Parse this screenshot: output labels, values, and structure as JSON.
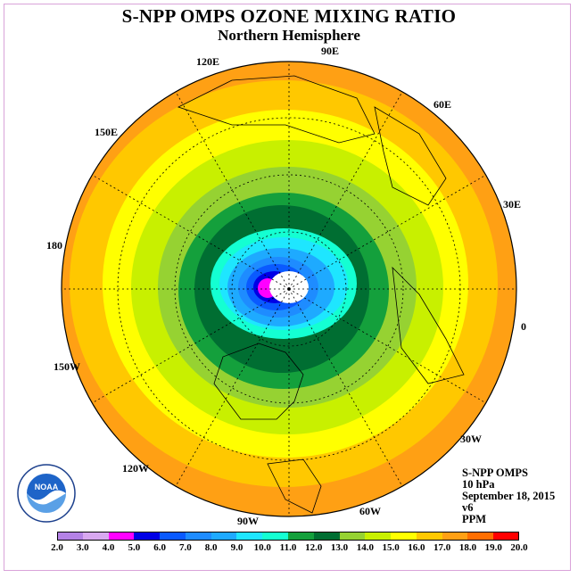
{
  "title": "S-NPP OMPS OZONE MIXING RATIO",
  "subtitle": "Northern Hemisphere",
  "longitude_labels": {
    "lon_90e": "90E",
    "lon_60e": "60E",
    "lon_30e": "30E",
    "lon_0": "0",
    "lon_30w": "30W",
    "lon_60w": "60W",
    "lon_90w": "90W",
    "lon_120w": "120W",
    "lon_150w": "150W",
    "lon_180": "180",
    "lon_150e": "150E",
    "lon_120e": "120E"
  },
  "info": {
    "instrument": "S-NPP OMPS",
    "level": "10 hPa",
    "date": "September 18, 2015",
    "version": "v6",
    "units": "PPM"
  },
  "colorbar": {
    "ticks": [
      "2.0",
      "3.0",
      "4.0",
      "5.0",
      "6.0",
      "7.0",
      "8.0",
      "9.0",
      "10.0",
      "11.0",
      "12.0",
      "13.0",
      "14.0",
      "15.0",
      "16.0",
      "17.0",
      "18.0",
      "19.0",
      "20.0"
    ],
    "colors": [
      "#b482e6",
      "#d8a8f0",
      "#ff00ff",
      "#0000e6",
      "#0a5aff",
      "#1e8cff",
      "#1eaaff",
      "#1ee6ff",
      "#14ffd2",
      "#14a03c",
      "#006e32",
      "#96d232",
      "#c8f000",
      "#ffff00",
      "#ffc800",
      "#ffa014",
      "#ff6e00",
      "#ff0000",
      "#a0502d"
    ]
  },
  "logo_text": "NOAA",
  "colors": {
    "ocean_outer": "#ffa014",
    "frame": "#d9a3d9"
  }
}
